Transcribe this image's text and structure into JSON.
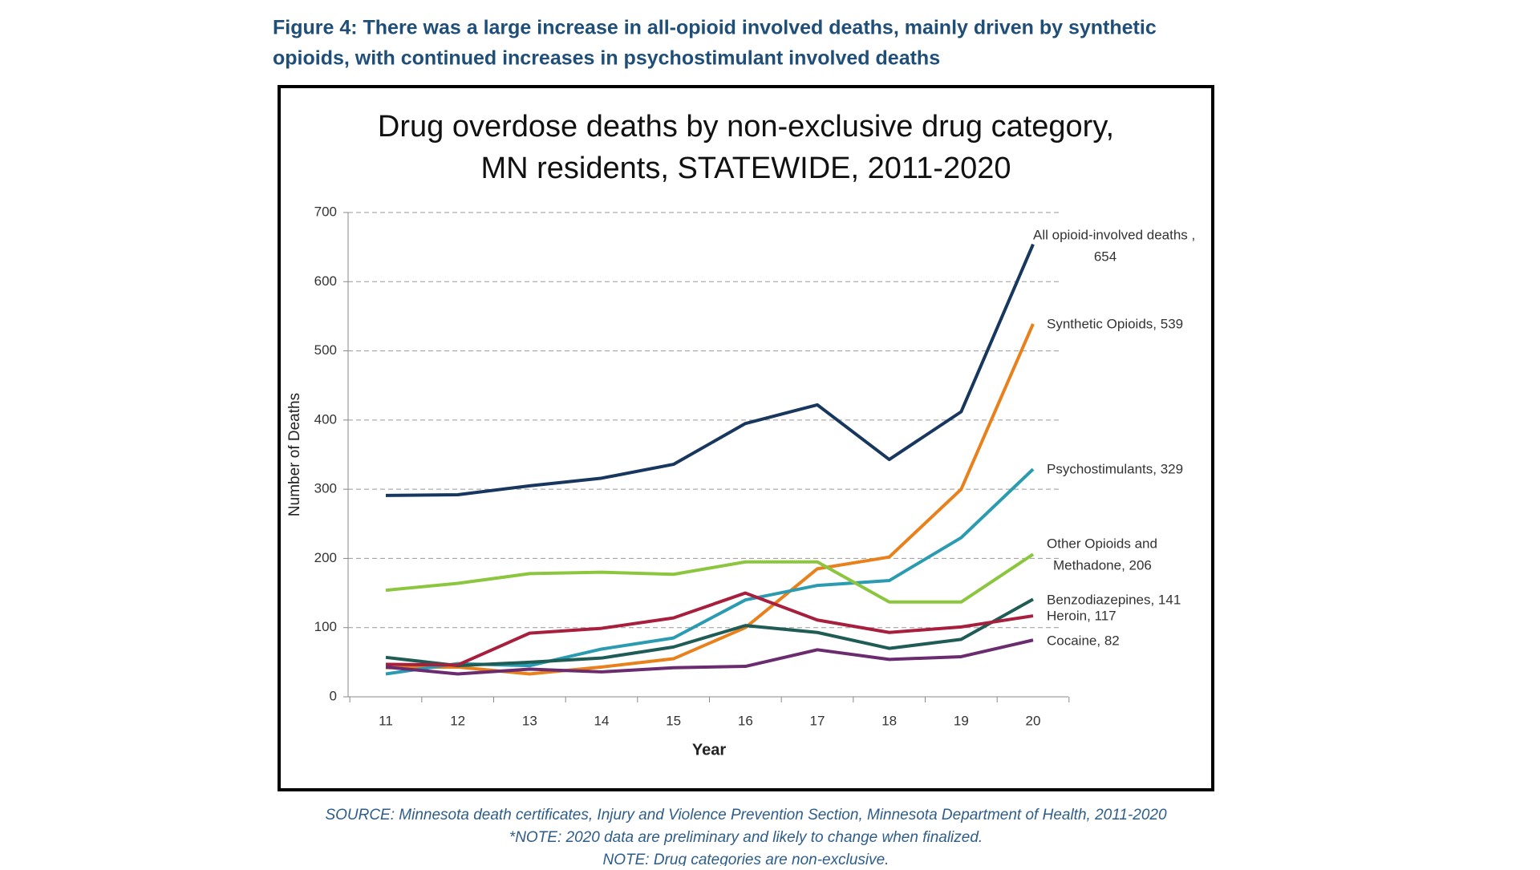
{
  "heading": [
    "Figure 4: There was a large increase in all-opioid involved deaths, mainly driven by synthetic",
    "opioids, with continued increases in psychostimulant involved deaths"
  ],
  "notes": [
    "SOURCE: Minnesota death certificates, Injury and Violence Prevention Section, Minnesota Department of Health, 2011-2020",
    "*NOTE: 2020 data are preliminary and likely to change when finalized.",
    "NOTE: Drug categories are non-exclusive."
  ],
  "chart_data": {
    "type": "line",
    "title": [
      "Drug overdose deaths by non-exclusive drug category,",
      "MN residents, STATEWIDE, 2011-2020"
    ],
    "x_label": "Year",
    "y_label": "Number of Deaths",
    "categories": [
      "11",
      "12",
      "13",
      "14",
      "15",
      "16",
      "17",
      "18",
      "19",
      "20"
    ],
    "ylim": [
      0,
      700
    ],
    "yticks": [
      0,
      100,
      200,
      300,
      400,
      500,
      600,
      700
    ],
    "grid": true,
    "series": [
      {
        "name": "All opioid-involved deaths",
        "color": "#17375e",
        "values": [
          291,
          292,
          305,
          316,
          336,
          395,
          422,
          343,
          412,
          654
        ],
        "end_label": [
          "All opioid-involved deaths ,",
          "654"
        ]
      },
      {
        "name": "Synthetic Opioids",
        "color": "#e8811c",
        "values": [
          42,
          43,
          33,
          43,
          55,
          100,
          185,
          202,
          300,
          539
        ],
        "end_label": [
          "Synthetic Opioids, 539"
        ]
      },
      {
        "name": "Psychostimulants",
        "color": "#2a9bb0",
        "values": [
          33,
          48,
          45,
          69,
          85,
          140,
          161,
          168,
          230,
          329
        ],
        "end_label": [
          "Psychostimulants, 329"
        ]
      },
      {
        "name": "Other Opioids and Methadone",
        "color": "#8cc63f",
        "values": [
          154,
          164,
          178,
          180,
          177,
          195,
          195,
          137,
          137,
          206
        ],
        "end_label": [
          "Other Opioids and",
          "Methadone, 206"
        ]
      },
      {
        "name": "Benzodiazepines",
        "color": "#1f5c55",
        "values": [
          57,
          45,
          50,
          56,
          72,
          103,
          93,
          70,
          83,
          141
        ],
        "end_label": [
          "Benzodiazepines, 141"
        ]
      },
      {
        "name": "Heroin",
        "color": "#a81f3e",
        "values": [
          47,
          46,
          92,
          99,
          114,
          150,
          111,
          93,
          101,
          117
        ],
        "end_label": [
          "Heroin, 117"
        ]
      },
      {
        "name": "Cocaine",
        "color": "#6a2c6e",
        "values": [
          43,
          33,
          40,
          36,
          42,
          44,
          68,
          54,
          58,
          82
        ],
        "end_label": [
          "Cocaine, 82"
        ]
      }
    ]
  }
}
